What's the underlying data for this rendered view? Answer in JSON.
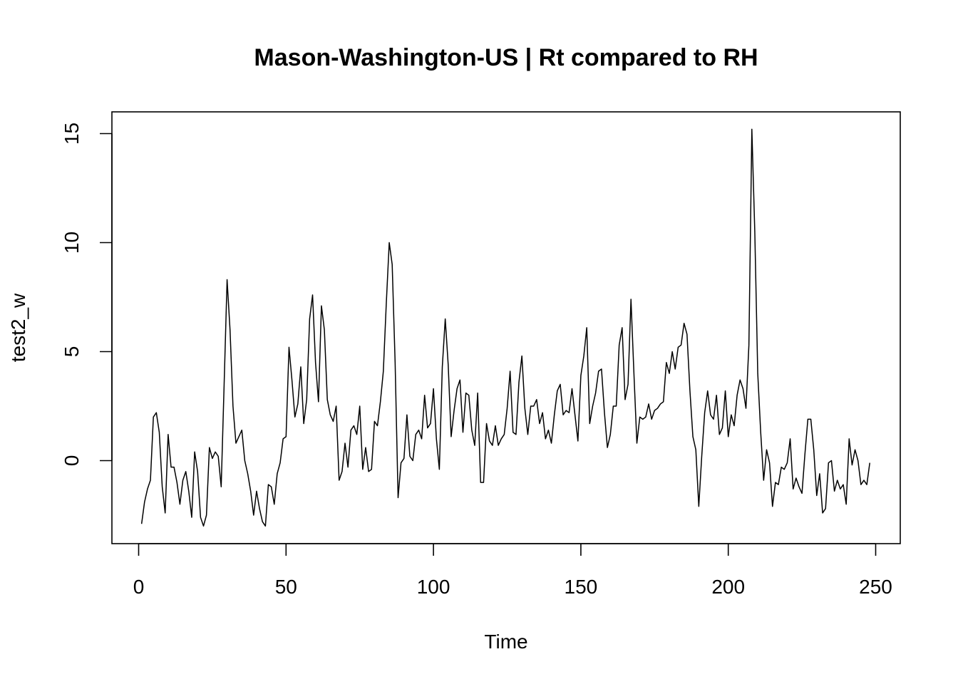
{
  "chart_data": {
    "type": "line",
    "title": "Mason-Washington-US | Rt compared to RH",
    "xlabel": "Time",
    "ylabel": "test2_w",
    "xlim": [
      0,
      250
    ],
    "ylim": [
      -3,
      15
    ],
    "x_ticks": [
      0,
      50,
      100,
      150,
      200,
      250
    ],
    "y_ticks": [
      0,
      5,
      10,
      15
    ],
    "x_tick_labels": [
      "0",
      "50",
      "100",
      "150",
      "200",
      "250"
    ],
    "y_tick_labels": [
      "0",
      "5",
      "10",
      "15"
    ],
    "grid": false,
    "line_color": "#000000",
    "series": [
      {
        "x_start": 1,
        "x_step": 1,
        "values": [
          -2.9,
          -1.9,
          -1.3,
          -0.9,
          2.0,
          2.2,
          1.3,
          -1.2,
          -2.4,
          1.2,
          -0.3,
          -0.3,
          -1.0,
          -2.0,
          -0.9,
          -0.5,
          -1.4,
          -2.6,
          0.4,
          -0.5,
          -2.6,
          -3.0,
          -2.5,
          0.6,
          0.1,
          0.4,
          0.2,
          -1.2,
          3.5,
          8.3,
          6.0,
          2.5,
          0.8,
          1.1,
          1.4,
          0.0,
          -0.6,
          -1.4,
          -2.5,
          -1.4,
          -2.2,
          -2.8,
          -3.0,
          -1.1,
          -1.2,
          -2.0,
          -0.6,
          -0.1,
          1.0,
          1.1,
          5.2,
          3.7,
          2.0,
          2.6,
          4.3,
          1.7,
          2.8,
          6.5,
          7.6,
          4.5,
          2.7,
          7.1,
          6.0,
          2.8,
          2.1,
          1.8,
          2.5,
          -0.9,
          -0.5,
          0.8,
          -0.3,
          1.4,
          1.6,
          1.2,
          2.5,
          -0.4,
          0.6,
          -0.5,
          -0.4,
          1.8,
          1.6,
          2.7,
          4.1,
          7.2,
          10.0,
          9.0,
          4.5,
          -1.7,
          -0.1,
          0.1,
          2.1,
          0.2,
          0.0,
          1.2,
          1.4,
          1.0,
          3.0,
          1.5,
          1.7,
          3.3,
          1.0,
          -0.4,
          4.3,
          6.5,
          4.4,
          1.1,
          2.3,
          3.3,
          3.7,
          1.3,
          3.1,
          3.0,
          1.4,
          0.7,
          3.1,
          -1.0,
          -1.0,
          1.7,
          0.9,
          0.7,
          1.6,
          0.7,
          1.0,
          1.2,
          2.4,
          4.1,
          1.3,
          1.2,
          3.6,
          4.8,
          2.4,
          1.2,
          2.5,
          2.5,
          2.8,
          1.7,
          2.2,
          1.0,
          1.4,
          0.8,
          2.1,
          3.2,
          3.5,
          2.1,
          2.3,
          2.2,
          3.3,
          2.1,
          0.9,
          3.9,
          4.8,
          6.1,
          1.7,
          2.5,
          3.1,
          4.1,
          4.2,
          2.2,
          0.6,
          1.2,
          2.5,
          2.5,
          5.3,
          6.1,
          2.8,
          3.5,
          7.4,
          4.0,
          0.8,
          2.0,
          1.9,
          2.0,
          2.6,
          1.9,
          2.3,
          2.4,
          2.6,
          2.7,
          4.5,
          4.0,
          5.0,
          4.2,
          5.2,
          5.3,
          6.3,
          5.8,
          3.2,
          1.1,
          0.5,
          -2.1,
          0.2,
          2.2,
          3.2,
          2.1,
          1.9,
          3.0,
          1.2,
          1.5,
          3.2,
          1.1,
          2.1,
          1.6,
          3.0,
          3.7,
          3.3,
          2.4,
          5.3,
          15.2,
          10.5,
          4.0,
          1.3,
          -0.9,
          0.5,
          -0.1,
          -2.1,
          -1.0,
          -1.1,
          -0.3,
          -0.4,
          -0.1,
          1.0,
          -1.3,
          -0.8,
          -1.2,
          -1.5,
          0.3,
          1.9,
          1.9,
          0.5,
          -1.6,
          -0.6,
          -2.4,
          -2.2,
          -0.1,
          0.0,
          -1.4,
          -0.9,
          -1.3,
          -1.1,
          -2.0,
          1.0,
          -0.2,
          0.5,
          0.0,
          -1.1,
          -0.9,
          -1.1,
          -0.1
        ]
      }
    ]
  }
}
